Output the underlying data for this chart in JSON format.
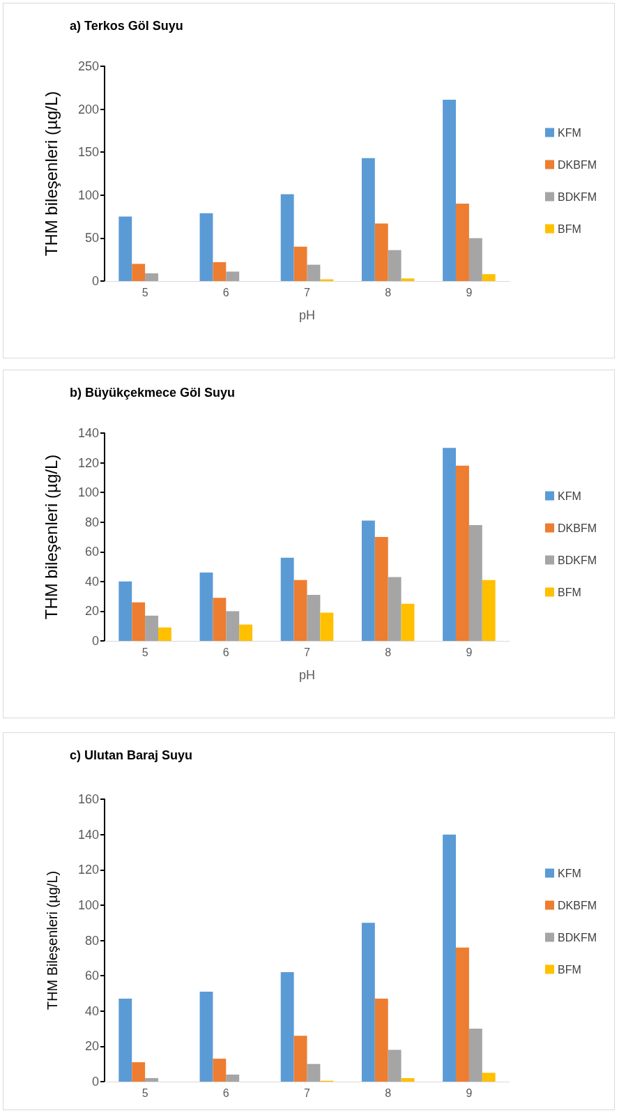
{
  "chart_data": [
    {
      "type": "bar",
      "title": "a) Terkos Göl Suyu",
      "xlabel": "pH",
      "ylabel": "THM bileşenleri (µg/L)",
      "categories": [
        "5",
        "6",
        "7",
        "8",
        "9"
      ],
      "ylim": [
        0,
        250
      ],
      "yticks": [
        0,
        50,
        100,
        150,
        200,
        250
      ],
      "grid": false,
      "legend": "right",
      "series": [
        {
          "name": "KFM",
          "color": "#5b9bd5",
          "values": [
            75,
            79,
            101,
            143,
            211
          ]
        },
        {
          "name": "DKBFM",
          "color": "#ed7d31",
          "values": [
            20,
            22,
            40,
            67,
            90
          ]
        },
        {
          "name": "BDKFM",
          "color": "#a5a5a5",
          "values": [
            9,
            11,
            19,
            36,
            50
          ]
        },
        {
          "name": "BFM",
          "color": "#ffc000",
          "values": [
            0,
            0,
            2,
            3,
            8
          ]
        }
      ]
    },
    {
      "type": "bar",
      "title": "b) Büyükçekmece Göl Suyu",
      "xlabel": "pH",
      "ylabel": "THM bileşenleri (µg/L)",
      "categories": [
        "5",
        "6",
        "7",
        "8",
        "9"
      ],
      "ylim": [
        0,
        140
      ],
      "yticks": [
        0,
        20,
        40,
        60,
        80,
        100,
        120,
        140
      ],
      "grid": false,
      "legend": "right",
      "series": [
        {
          "name": "KFM",
          "color": "#5b9bd5",
          "values": [
            40,
            46,
            56,
            81,
            130
          ]
        },
        {
          "name": "DKBFM",
          "color": "#ed7d31",
          "values": [
            26,
            29,
            41,
            70,
            118
          ]
        },
        {
          "name": "BDKFM",
          "color": "#a5a5a5",
          "values": [
            17,
            20,
            31,
            43,
            78
          ]
        },
        {
          "name": "BFM",
          "color": "#ffc000",
          "values": [
            9,
            11,
            19,
            25,
            41
          ]
        }
      ]
    },
    {
      "type": "bar",
      "title": "c) Ulutan Baraj Suyu",
      "ylabel": "THM Bileşenleri (µg/L)",
      "categories": [
        "5",
        "6",
        "7",
        "8",
        "9"
      ],
      "ylim": [
        0,
        160
      ],
      "yticks": [
        0,
        20,
        40,
        60,
        80,
        100,
        120,
        140,
        160
      ],
      "grid": false,
      "legend": "right",
      "series": [
        {
          "name": "KFM",
          "color": "#5b9bd5",
          "values": [
            47,
            51,
            62,
            90,
            140
          ]
        },
        {
          "name": "DKBFM",
          "color": "#ed7d31",
          "values": [
            11,
            13,
            26,
            47,
            76
          ]
        },
        {
          "name": "BDKFM",
          "color": "#a5a5a5",
          "values": [
            2,
            4,
            10,
            18,
            30
          ]
        },
        {
          "name": "BFM",
          "color": "#ffc000",
          "values": [
            0,
            0,
            0.5,
            2,
            5
          ]
        }
      ]
    }
  ]
}
